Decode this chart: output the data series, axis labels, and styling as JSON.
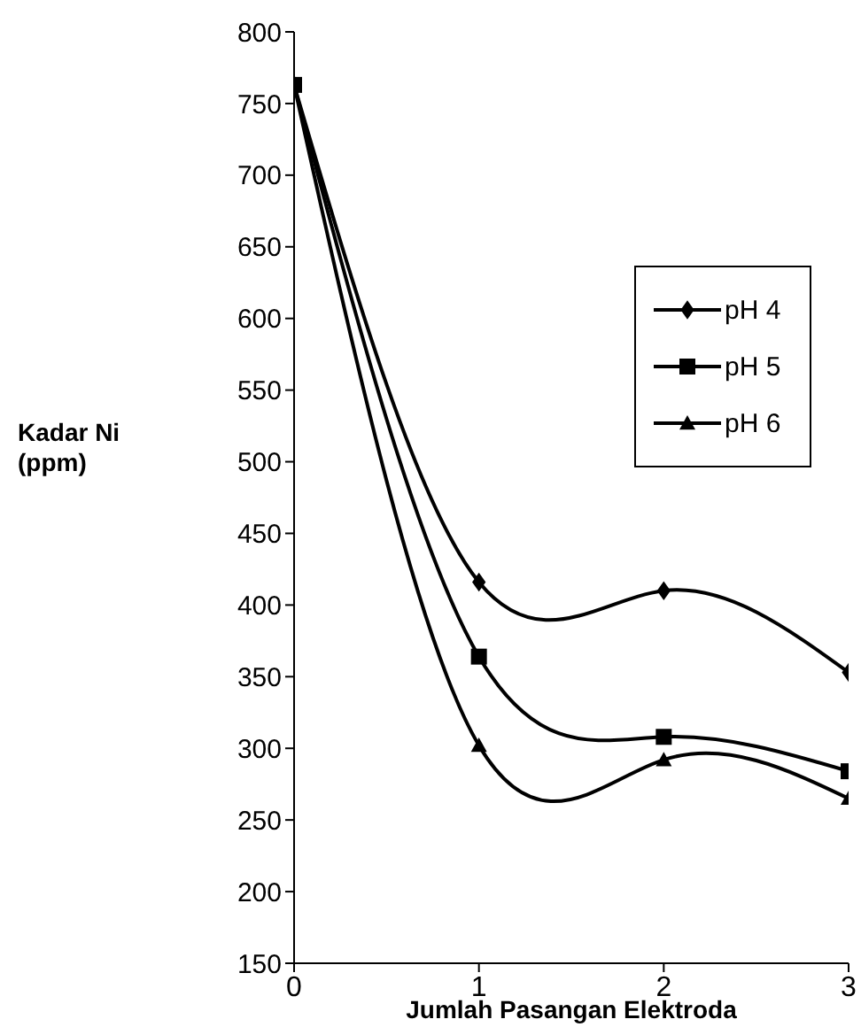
{
  "chart_data": {
    "type": "line",
    "xlabel": "Jumlah Pasangan Elektroda",
    "ylabel": "Kadar Ni\n(ppm)",
    "x": [
      0,
      1,
      2,
      3
    ],
    "xlim": [
      0,
      3
    ],
    "xticks": [
      0,
      1,
      2,
      3
    ],
    "ylim": [
      150,
      800
    ],
    "yticks": [
      150,
      200,
      250,
      300,
      350,
      400,
      450,
      500,
      550,
      600,
      650,
      700,
      750,
      800
    ],
    "grid": false,
    "legend": "right",
    "line_style": "solid",
    "series": [
      {
        "name": "pH 4",
        "color": "#000000",
        "marker": "diamond",
        "values": [
          763,
          416,
          410,
          353
        ]
      },
      {
        "name": "pH 5",
        "color": "#000000",
        "marker": "square",
        "values": [
          763,
          364,
          308,
          284
        ]
      },
      {
        "name": "pH 6",
        "color": "#000000",
        "marker": "triangle",
        "values": [
          763,
          302,
          292,
          265
        ]
      }
    ]
  }
}
